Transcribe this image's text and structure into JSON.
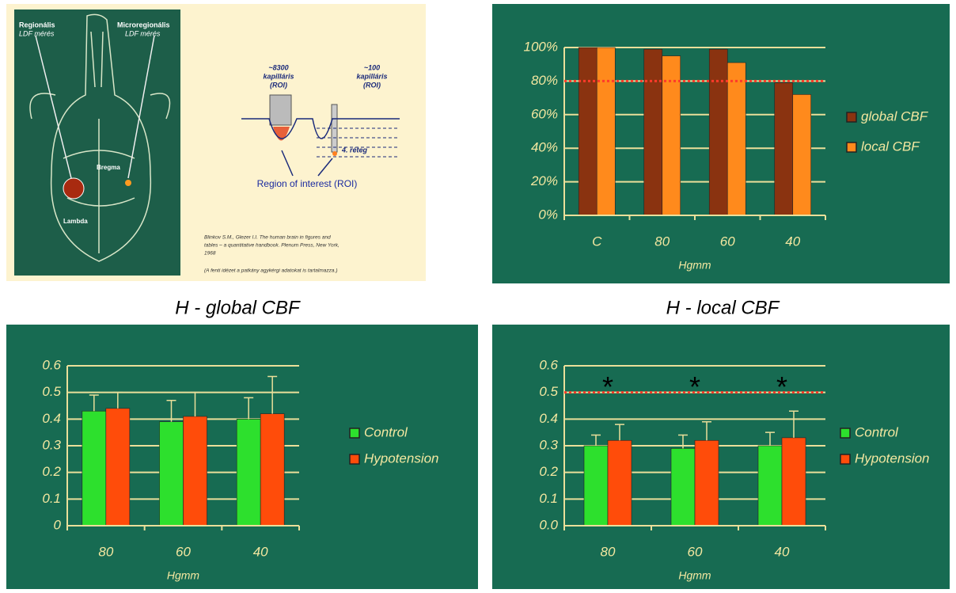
{
  "illustration": {
    "left_label": [
      "Regionális",
      "LDF mérés"
    ],
    "right_label": [
      "Microregionális",
      "LDF mérés"
    ],
    "bregma": "Bregma",
    "lambda": "Lambda",
    "big_probe": [
      "~8300",
      "kapilláris",
      "(ROI)"
    ],
    "small_probe": [
      "~100",
      "kapilláris",
      "(ROI)"
    ],
    "layer": "4. réteg",
    "roi": "Region of interest (ROI)",
    "citation": [
      "Blinkov S.M., Glezer I.I. The human brain in figures and",
      "tables – a quantitative handbook. Plenum Press, New York,",
      "1968",
      "(A fenti idézet a patkány agykérgi adatokat is tartalmazza.)"
    ]
  },
  "chart_data": [
    {
      "type": "bar",
      "x_label": "Hgmm",
      "categories": [
        "C",
        "80",
        "60",
        "40"
      ],
      "series": [
        {
          "name": "global CBF",
          "color": "#8a3310",
          "values": [
            100,
            99,
            99,
            79
          ]
        },
        {
          "name": "local CBF",
          "color": "#ff8a1c",
          "values": [
            100,
            95,
            91,
            72
          ]
        }
      ],
      "ylim": [
        0,
        100
      ],
      "yticks": [
        {
          "value": 0,
          "label": "0%"
        },
        {
          "value": 20,
          "label": "20%"
        },
        {
          "value": 40,
          "label": "40%"
        },
        {
          "value": 60,
          "label": "60%"
        },
        {
          "value": 80,
          "label": "80%"
        },
        {
          "value": 100,
          "label": "100%"
        }
      ],
      "reference_line": 80,
      "grid": true,
      "legend": "right"
    },
    {
      "type": "bar",
      "title": "H - global CBF",
      "x_label": "Hgmm",
      "categories": [
        "80",
        "60",
        "40"
      ],
      "series": [
        {
          "name": "Control",
          "color": "#2de02d",
          "values": [
            0.43,
            0.39,
            0.4
          ],
          "errors": [
            0.06,
            0.08,
            0.08
          ]
        },
        {
          "name": "Hypotension",
          "color": "#ff4c0a",
          "values": [
            0.44,
            0.41,
            0.42
          ],
          "errors": [
            0.06,
            0.09,
            0.14
          ]
        }
      ],
      "ylim": [
        0,
        0.6
      ],
      "yticks": [
        0,
        0.1,
        0.2,
        0.3,
        0.4,
        0.5,
        0.6
      ],
      "grid": true,
      "legend": "right"
    },
    {
      "type": "bar",
      "title": "H - local CBF",
      "x_label": "Hgmm",
      "categories": [
        "80",
        "60",
        "40"
      ],
      "series": [
        {
          "name": "Control",
          "color": "#2de02d",
          "values": [
            0.3,
            0.29,
            0.3
          ],
          "errors": [
            0.04,
            0.05,
            0.05
          ]
        },
        {
          "name": "Hypotension",
          "color": "#ff4c0a",
          "values": [
            0.32,
            0.32,
            0.33
          ],
          "errors": [
            0.06,
            0.07,
            0.1
          ]
        }
      ],
      "ylim": [
        0,
        0.6
      ],
      "yticks": [
        {
          "value": 0,
          "label": "0.0"
        },
        0.1,
        0.2,
        0.3,
        0.4,
        0.5,
        0.6
      ],
      "reference_line": 0.5,
      "annotations": [
        "*",
        "*",
        "*"
      ],
      "grid": true,
      "legend": "right"
    }
  ]
}
